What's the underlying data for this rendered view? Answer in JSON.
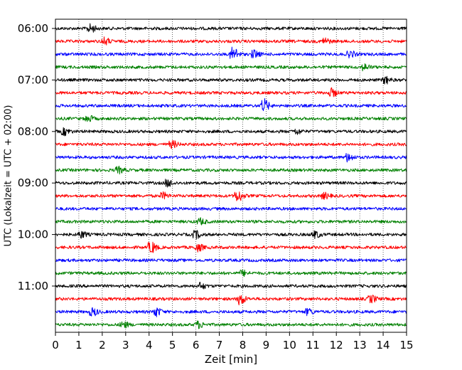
{
  "chart_data": {
    "type": "line",
    "title": "",
    "xlabel": "Zeit  [min]",
    "ylabel": "UTC (Lokalzeit = UTC + 02:00)",
    "xlim": [
      0,
      15
    ],
    "x_ticks": [
      "0",
      "1",
      "2",
      "3",
      "4",
      "5",
      "6",
      "7",
      "8",
      "9",
      "10",
      "11",
      "12",
      "13",
      "14",
      "15"
    ],
    "y_ticks": [
      "06:00",
      "07:00",
      "08:00",
      "09:00",
      "10:00",
      "11:00"
    ],
    "grid": "vertical dotted",
    "trace_interval_minutes": 15,
    "trace_count": 24,
    "start_time": "06:00",
    "series_colors": [
      "#000000",
      "#ff0000",
      "#0000ff",
      "#008000"
    ],
    "events": [
      {
        "trace": 0,
        "x": 1.5,
        "amp": 1.6
      },
      {
        "trace": 1,
        "x": 2.1,
        "amp": 1.4
      },
      {
        "trace": 1,
        "x": 11.5,
        "amp": 1.3
      },
      {
        "trace": 2,
        "x": 7.6,
        "amp": 2.8
      },
      {
        "trace": 2,
        "x": 8.5,
        "amp": 1.5
      },
      {
        "trace": 2,
        "x": 12.6,
        "amp": 1.2
      },
      {
        "trace": 3,
        "x": 13.2,
        "amp": 1.2
      },
      {
        "trace": 4,
        "x": 14.1,
        "amp": 1.4
      },
      {
        "trace": 5,
        "x": 11.8,
        "amp": 1.6
      },
      {
        "trace": 6,
        "x": 8.9,
        "amp": 2.6
      },
      {
        "trace": 7,
        "x": 1.4,
        "amp": 1.2
      },
      {
        "trace": 8,
        "x": 0.4,
        "amp": 1.3
      },
      {
        "trace": 8,
        "x": 10.3,
        "amp": 1.0
      },
      {
        "trace": 9,
        "x": 5.0,
        "amp": 1.3
      },
      {
        "trace": 10,
        "x": 12.5,
        "amp": 1.6
      },
      {
        "trace": 11,
        "x": 2.7,
        "amp": 1.2
      },
      {
        "trace": 12,
        "x": 4.8,
        "amp": 1.4
      },
      {
        "trace": 13,
        "x": 4.6,
        "amp": 1.2
      },
      {
        "trace": 13,
        "x": 7.8,
        "amp": 2.2
      },
      {
        "trace": 13,
        "x": 11.5,
        "amp": 1.1
      },
      {
        "trace": 15,
        "x": 6.2,
        "amp": 1.2
      },
      {
        "trace": 16,
        "x": 1.1,
        "amp": 1.3
      },
      {
        "trace": 16,
        "x": 6.0,
        "amp": 1.5
      },
      {
        "trace": 16,
        "x": 11.1,
        "amp": 1.3
      },
      {
        "trace": 17,
        "x": 4.1,
        "amp": 2.2
      },
      {
        "trace": 17,
        "x": 6.1,
        "amp": 1.4
      },
      {
        "trace": 19,
        "x": 8.0,
        "amp": 1.0
      },
      {
        "trace": 20,
        "x": 6.2,
        "amp": 1.2
      },
      {
        "trace": 21,
        "x": 7.9,
        "amp": 2.2
      },
      {
        "trace": 21,
        "x": 13.5,
        "amp": 1.4
      },
      {
        "trace": 22,
        "x": 1.6,
        "amp": 1.5
      },
      {
        "trace": 22,
        "x": 4.3,
        "amp": 1.8
      },
      {
        "trace": 22,
        "x": 10.8,
        "amp": 1.2
      },
      {
        "trace": 23,
        "x": 2.9,
        "amp": 1.2
      },
      {
        "trace": 23,
        "x": 6.1,
        "amp": 1.3
      }
    ]
  }
}
